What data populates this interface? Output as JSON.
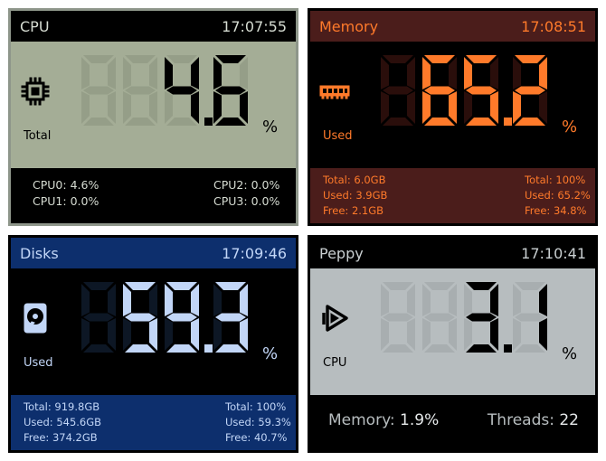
{
  "panels": [
    {
      "title": "CPU",
      "time": "17:07:55",
      "sub_label": "Total",
      "value": "4.6",
      "unit": "%",
      "icon": "chip-icon",
      "colors": {
        "hdr_bg": "#000000",
        "hdr_fg": "#d6dcd2",
        "mid_bg": "#a4ad96",
        "mid_fg": "#000000",
        "ghost": "#959e88",
        "foot_bg": "#000000",
        "foot_fg": "#d6dcd2",
        "border": "#8e968a"
      },
      "footer": {
        "left": [
          {
            "name": "CPU0:",
            "value": "4.6%"
          },
          {
            "name": "CPU1:",
            "value": "0.0%"
          }
        ],
        "right": [
          {
            "name": "CPU2:",
            "value": "0.0%"
          },
          {
            "name": "CPU3:",
            "value": "0.0%"
          }
        ]
      }
    },
    {
      "title": "Memory",
      "time": "17:08:51",
      "sub_label": "Used",
      "value": "65.2",
      "unit": "%",
      "icon": "ram-icon",
      "colors": {
        "hdr_bg": "#4b1d1b",
        "hdr_fg": "#ff7a2a",
        "mid_bg": "#000000",
        "mid_fg": "#ff7a2a",
        "ghost": "#2a0e0b",
        "foot_bg": "#4b1d1b",
        "foot_fg": "#ff7a2a",
        "border": "#000000"
      },
      "footer": {
        "left": [
          {
            "name": "Total:",
            "value": "6.0GB"
          },
          {
            "name": "Used:",
            "value": "3.9GB"
          },
          {
            "name": "Free:",
            "value": "2.1GB"
          }
        ],
        "right": [
          {
            "name": "Total:",
            "value": "100%"
          },
          {
            "name": "Used:",
            "value": "65.2%"
          },
          {
            "name": "Free:",
            "value": "34.8%"
          }
        ]
      }
    },
    {
      "title": "Disks",
      "time": "17:09:46",
      "sub_label": "Used",
      "value": "59.3",
      "unit": "%",
      "icon": "hard-disk-icon",
      "colors": {
        "hdr_bg": "#0d2f6d",
        "hdr_fg": "#c2d6f7",
        "mid_bg": "#000000",
        "mid_fg": "#c2d6f7",
        "ghost": "#0d1725",
        "foot_bg": "#0d2f6d",
        "foot_fg": "#c2d6f7",
        "border": "#000000"
      },
      "footer": {
        "left": [
          {
            "name": "Total:",
            "value": "919.8GB"
          },
          {
            "name": "Used:",
            "value": "545.6GB"
          },
          {
            "name": "Free:",
            "value": "374.2GB"
          }
        ],
        "right": [
          {
            "name": "Total:",
            "value": "100%"
          },
          {
            "name": "Used:",
            "value": "59.3%"
          },
          {
            "name": "Free:",
            "value": "40.7%"
          }
        ]
      }
    },
    {
      "title": "Peppy",
      "time": "17:10:41",
      "sub_label": "CPU",
      "value": "3.1",
      "unit": "%",
      "icon": "peppy-logo-icon",
      "colors": {
        "hdr_bg": "#000000",
        "hdr_fg": "#c9cfd1",
        "mid_bg": "#b7bdbf",
        "mid_fg": "#000000",
        "ghost": "#a8aeb0",
        "foot_bg": "#000000",
        "foot_fg": "#b7bdbf",
        "border": "#000000"
      },
      "footer": {
        "memory_label": "Memory:",
        "memory_value": "1.9%",
        "threads_label": "Threads:",
        "threads_value": "22"
      }
    }
  ]
}
